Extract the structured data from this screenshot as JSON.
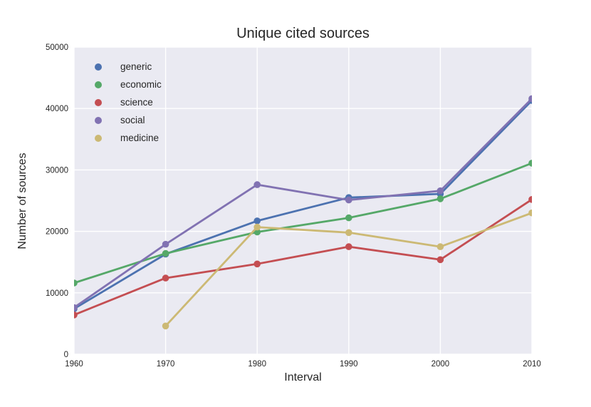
{
  "title": "Unique cited sources",
  "chart_data": {
    "type": "line",
    "title": "Unique cited sources",
    "xlabel": "Interval",
    "ylabel": "Number of sources",
    "x": [
      1960,
      1970,
      1980,
      1990,
      2000,
      2010
    ],
    "xtick_labels": [
      "1960",
      "1970",
      "1980",
      "1990",
      "2000",
      "2010"
    ],
    "yticks": [
      0,
      10000,
      20000,
      30000,
      40000,
      50000
    ],
    "ytick_labels": [
      "0",
      "10000",
      "20000",
      "30000",
      "40000",
      "50000"
    ],
    "xlim": [
      1960,
      2010
    ],
    "ylim": [
      0,
      50000
    ],
    "grid": true,
    "legend_position": "upper left",
    "colors": {
      "plot_background": "#EAEAF2",
      "grid": "#FFFFFF",
      "text": "#262626",
      "figure_background": "#FFFFFF"
    },
    "series": [
      {
        "name": "generic",
        "color": "#4C72B0",
        "values": [
          7400,
          16300,
          21700,
          25500,
          26100,
          41300
        ]
      },
      {
        "name": "economic",
        "color": "#55A868",
        "values": [
          11600,
          16400,
          19900,
          22200,
          25300,
          31100
        ]
      },
      {
        "name": "science",
        "color": "#C44E52",
        "values": [
          6400,
          12400,
          14700,
          17500,
          15400,
          25200
        ]
      },
      {
        "name": "social",
        "color": "#8172B2",
        "values": [
          7600,
          17900,
          27600,
          25100,
          26600,
          41600
        ]
      },
      {
        "name": "medicine",
        "color": "#CCB974",
        "values": [
          null,
          4600,
          20700,
          19800,
          17500,
          23000
        ]
      }
    ]
  }
}
